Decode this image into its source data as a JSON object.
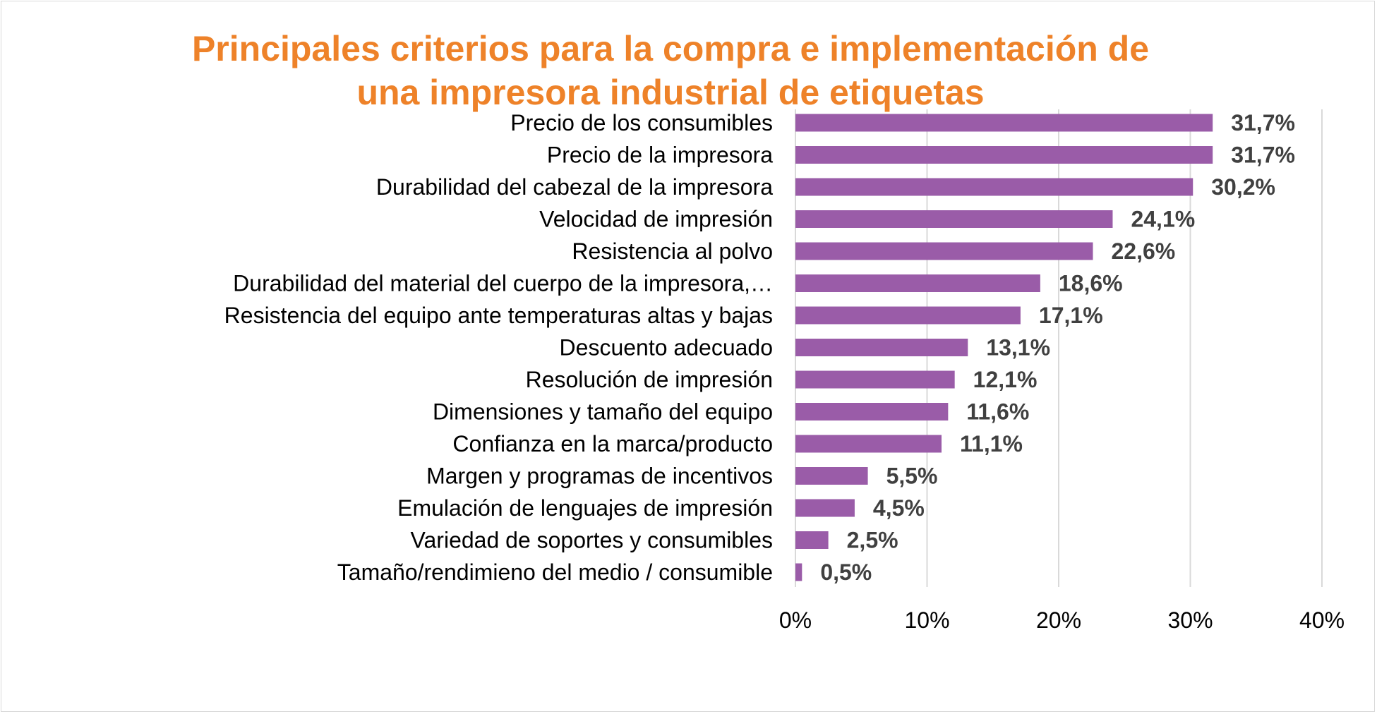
{
  "chart_data": {
    "type": "bar",
    "orientation": "horizontal",
    "title_lines": [
      "Principales criterios para la compra e implementación de",
      "una impresora industrial de etiquetas"
    ],
    "categories": [
      "Precio de los consumibles",
      "Precio de la impresora",
      "Durabilidad del cabezal de la impresora",
      "Velocidad de impresión",
      "Resistencia al polvo",
      "Durabilidad del material del cuerpo de la impresora,…",
      "Resistencia del equipo ante temperaturas altas y bajas",
      "Descuento adecuado",
      "Resolución de impresión",
      "Dimensiones y tamaño del equipo",
      "Confianza en la marca/producto",
      "Margen y programas de incentivos",
      "Emulación de lenguajes de impresión",
      "Variedad de soportes y consumibles",
      "Tamaño/rendimieno del medio / consumible"
    ],
    "values": [
      31.7,
      31.7,
      30.2,
      24.1,
      22.6,
      18.6,
      17.1,
      13.1,
      12.1,
      11.6,
      11.1,
      5.5,
      4.5,
      2.5,
      0.5
    ],
    "value_labels": [
      "31,7%",
      "31,7%",
      "30,2%",
      "24,1%",
      "22,6%",
      "18,6%",
      "17,1%",
      "13,1%",
      "12,1%",
      "11,6%",
      "11,1%",
      "5,5%",
      "4,5%",
      "2,5%",
      "0,5%"
    ],
    "xlim": [
      0,
      40
    ],
    "xticks": [
      0,
      10,
      20,
      30,
      40
    ],
    "xtick_labels": [
      "0%",
      "10%",
      "20%",
      "30%",
      "40%"
    ],
    "xlabel": "",
    "ylabel": "",
    "grid": "vertical",
    "legend": "none"
  },
  "colors": {
    "title": "#ee8229",
    "bar": "#9a5ca8",
    "value_label": "#404040",
    "grid": "#d9d9d9",
    "text": "#000000"
  }
}
